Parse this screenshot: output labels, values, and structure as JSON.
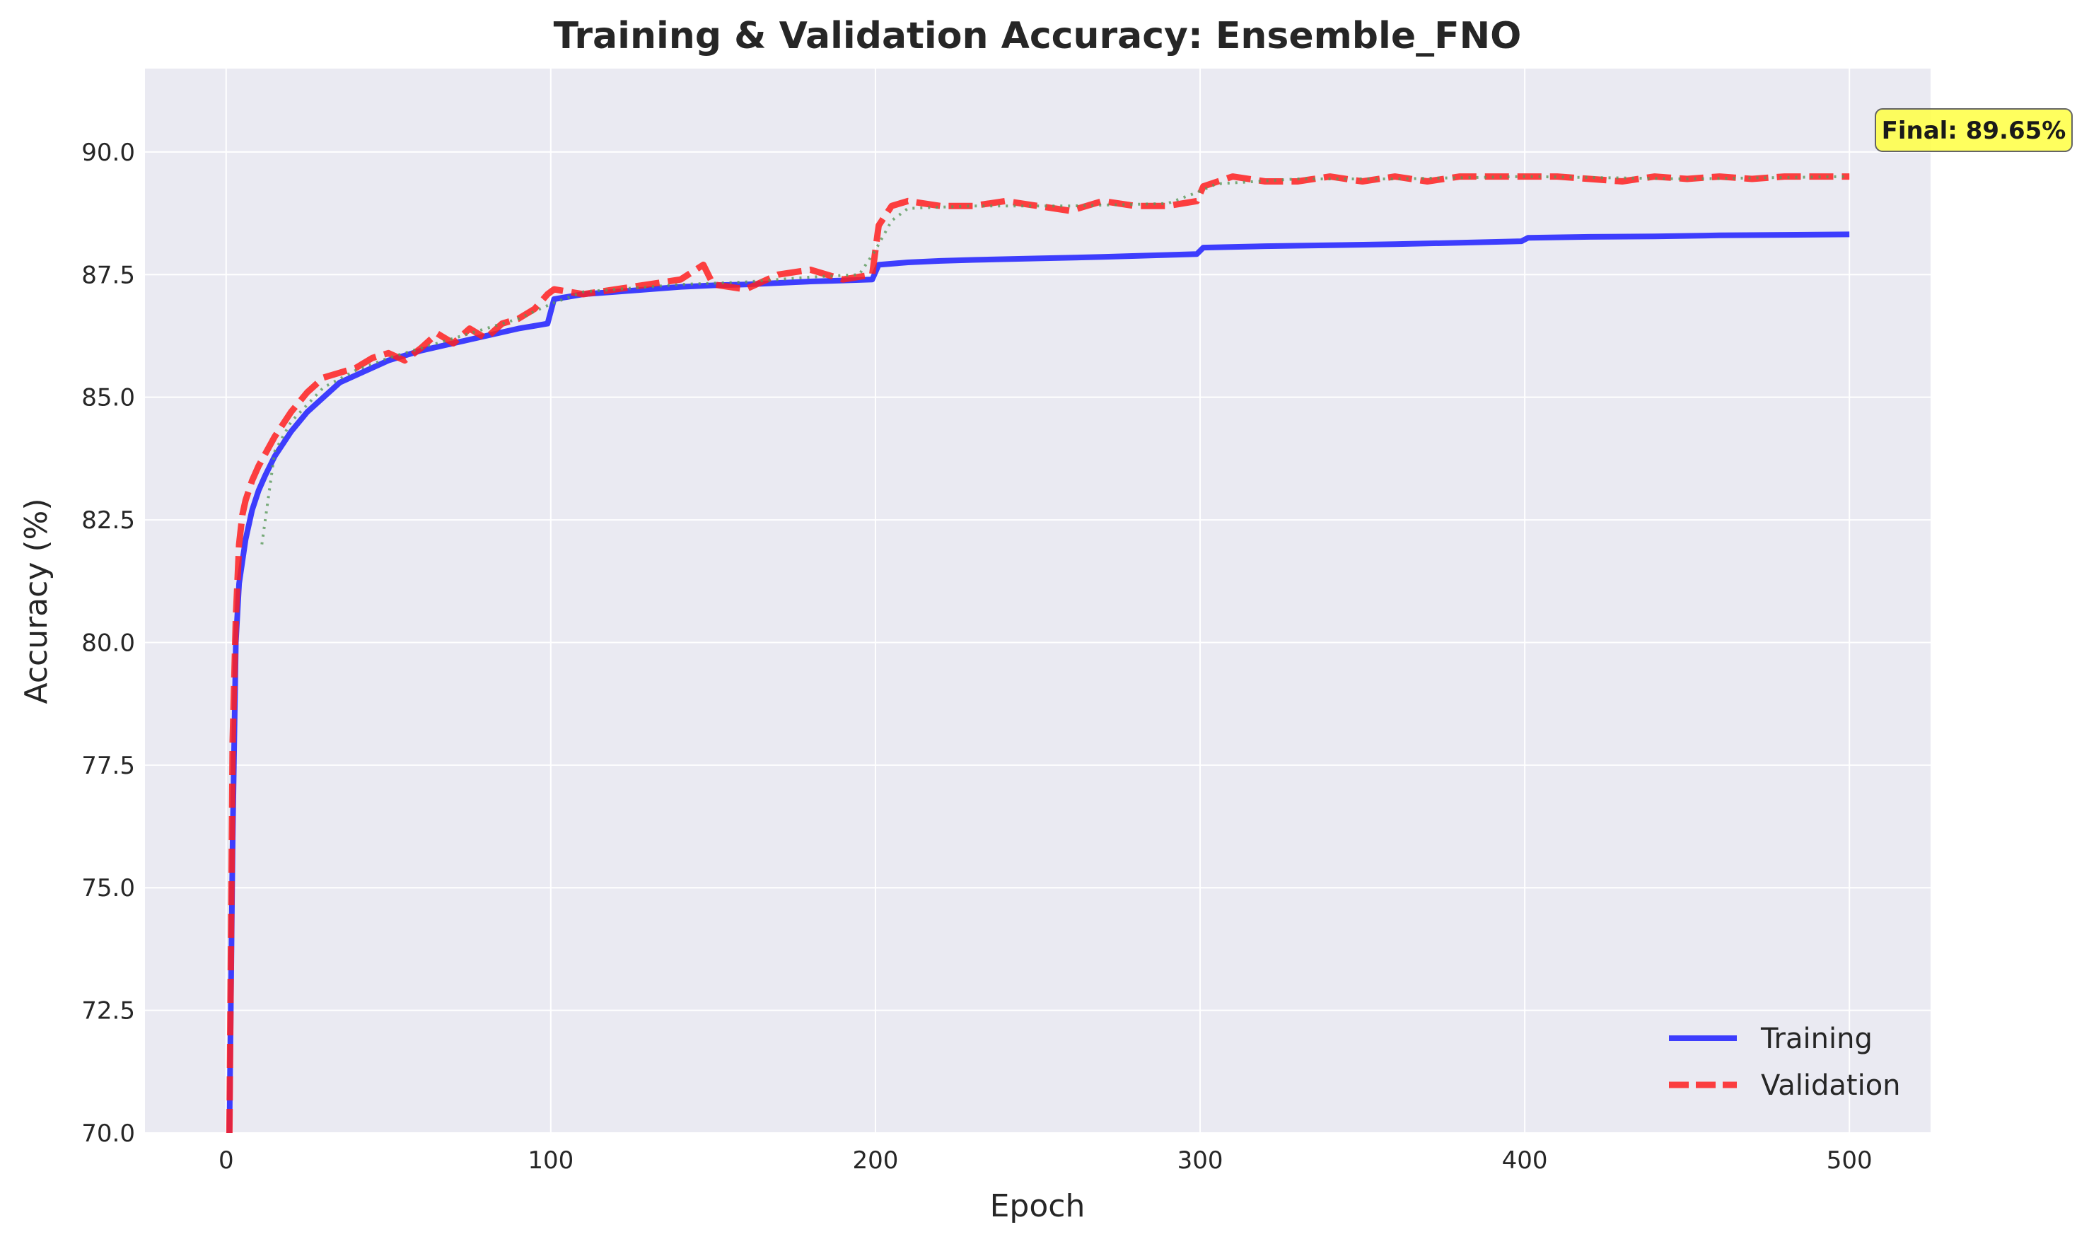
{
  "chart_data": {
    "type": "line",
    "title": "Training & Validation Accuracy: Ensemble_FNO",
    "xlabel": "Epoch",
    "ylabel": "Accuracy (%)",
    "xlim": [
      -25,
      525
    ],
    "ylim": [
      70,
      91.7
    ],
    "xticks": [
      0,
      100,
      200,
      300,
      400,
      500
    ],
    "yticks": [
      70.0,
      72.5,
      75.0,
      77.5,
      80.0,
      82.5,
      85.0,
      87.5,
      90.0
    ],
    "grid": true,
    "background": "#eaeaf2",
    "legend": {
      "position": "lower-right"
    },
    "series": [
      {
        "name": "Training",
        "color": "#1f1fff",
        "style": "solid",
        "points": [
          [
            1,
            70
          ],
          [
            2,
            76
          ],
          [
            3,
            80
          ],
          [
            4,
            81.2
          ],
          [
            6,
            82.1
          ],
          [
            8,
            82.7
          ],
          [
            10,
            83.1
          ],
          [
            12,
            83.4
          ],
          [
            15,
            83.8
          ],
          [
            20,
            84.3
          ],
          [
            25,
            84.7
          ],
          [
            30,
            85.0
          ],
          [
            35,
            85.3
          ],
          [
            40,
            85.45
          ],
          [
            45,
            85.6
          ],
          [
            50,
            85.75
          ],
          [
            60,
            85.95
          ],
          [
            70,
            86.1
          ],
          [
            80,
            86.25
          ],
          [
            90,
            86.4
          ],
          [
            99,
            86.5
          ],
          [
            101,
            87.0
          ],
          [
            110,
            87.1
          ],
          [
            120,
            87.15
          ],
          [
            130,
            87.2
          ],
          [
            140,
            87.25
          ],
          [
            150,
            87.28
          ],
          [
            160,
            87.3
          ],
          [
            170,
            87.33
          ],
          [
            180,
            87.36
          ],
          [
            190,
            87.38
          ],
          [
            199,
            87.4
          ],
          [
            201,
            87.7
          ],
          [
            210,
            87.75
          ],
          [
            220,
            87.78
          ],
          [
            230,
            87.8
          ],
          [
            250,
            87.83
          ],
          [
            270,
            87.86
          ],
          [
            290,
            87.9
          ],
          [
            299,
            87.92
          ],
          [
            301,
            88.05
          ],
          [
            320,
            88.08
          ],
          [
            340,
            88.1
          ],
          [
            360,
            88.12
          ],
          [
            380,
            88.15
          ],
          [
            399,
            88.18
          ],
          [
            401,
            88.25
          ],
          [
            420,
            88.27
          ],
          [
            440,
            88.28
          ],
          [
            460,
            88.3
          ],
          [
            480,
            88.31
          ],
          [
            500,
            88.32
          ]
        ]
      },
      {
        "name": "Validation",
        "color": "#ff2020",
        "style": "dashed",
        "points": [
          [
            1,
            70
          ],
          [
            2,
            78
          ],
          [
            3,
            80.5
          ],
          [
            4,
            82
          ],
          [
            5,
            82.6
          ],
          [
            6,
            82.9
          ],
          [
            8,
            83.3
          ],
          [
            10,
            83.6
          ],
          [
            15,
            84.2
          ],
          [
            20,
            84.7
          ],
          [
            25,
            85.1
          ],
          [
            30,
            85.4
          ],
          [
            35,
            85.5
          ],
          [
            40,
            85.6
          ],
          [
            45,
            85.8
          ],
          [
            50,
            85.9
          ],
          [
            55,
            85.75
          ],
          [
            60,
            86.0
          ],
          [
            65,
            86.3
          ],
          [
            70,
            86.1
          ],
          [
            75,
            86.4
          ],
          [
            80,
            86.2
          ],
          [
            85,
            86.5
          ],
          [
            90,
            86.6
          ],
          [
            95,
            86.8
          ],
          [
            99,
            87.1
          ],
          [
            101,
            87.2
          ],
          [
            110,
            87.1
          ],
          [
            120,
            87.2
          ],
          [
            130,
            87.3
          ],
          [
            140,
            87.4
          ],
          [
            147,
            87.7
          ],
          [
            150,
            87.3
          ],
          [
            160,
            87.2
          ],
          [
            170,
            87.5
          ],
          [
            180,
            87.6
          ],
          [
            190,
            87.4
          ],
          [
            199,
            87.5
          ],
          [
            201,
            88.5
          ],
          [
            205,
            88.9
          ],
          [
            210,
            89.0
          ],
          [
            220,
            88.9
          ],
          [
            230,
            88.9
          ],
          [
            240,
            89.0
          ],
          [
            250,
            88.9
          ],
          [
            260,
            88.8
          ],
          [
            270,
            89.0
          ],
          [
            280,
            88.9
          ],
          [
            290,
            88.9
          ],
          [
            299,
            89.0
          ],
          [
            301,
            89.3
          ],
          [
            310,
            89.5
          ],
          [
            320,
            89.4
          ],
          [
            330,
            89.4
          ],
          [
            340,
            89.5
          ],
          [
            350,
            89.4
          ],
          [
            360,
            89.5
          ],
          [
            370,
            89.4
          ],
          [
            380,
            89.5
          ],
          [
            390,
            89.5
          ],
          [
            399,
            89.5
          ],
          [
            401,
            89.5
          ],
          [
            410,
            89.5
          ],
          [
            420,
            89.45
          ],
          [
            430,
            89.4
          ],
          [
            440,
            89.5
          ],
          [
            450,
            89.45
          ],
          [
            460,
            89.5
          ],
          [
            470,
            89.45
          ],
          [
            480,
            89.5
          ],
          [
            490,
            89.5
          ],
          [
            500,
            89.5
          ]
        ]
      },
      {
        "name": "",
        "color": "#5a9a5a",
        "style": "dotted",
        "points": [
          [
            11,
            82.0
          ],
          [
            15,
            83.9
          ],
          [
            20,
            84.5
          ],
          [
            30,
            85.2
          ],
          [
            40,
            85.55
          ],
          [
            50,
            85.8
          ],
          [
            60,
            86.0
          ],
          [
            70,
            86.2
          ],
          [
            80,
            86.4
          ],
          [
            90,
            86.6
          ],
          [
            100,
            86.9
          ],
          [
            110,
            87.15
          ],
          [
            120,
            87.2
          ],
          [
            140,
            87.3
          ],
          [
            160,
            87.35
          ],
          [
            180,
            87.45
          ],
          [
            195,
            87.5
          ],
          [
            200,
            88.0
          ],
          [
            205,
            88.6
          ],
          [
            210,
            88.85
          ],
          [
            230,
            88.9
          ],
          [
            260,
            88.9
          ],
          [
            290,
            88.95
          ],
          [
            300,
            89.2
          ],
          [
            305,
            89.35
          ],
          [
            330,
            89.45
          ],
          [
            360,
            89.45
          ],
          [
            400,
            89.5
          ],
          [
            450,
            89.45
          ],
          [
            500,
            89.5
          ]
        ]
      }
    ],
    "annotations": [
      {
        "text": "Final: 89.65%",
        "x": 500,
        "y": 89.65,
        "box_color": "#ffff4d"
      }
    ]
  }
}
